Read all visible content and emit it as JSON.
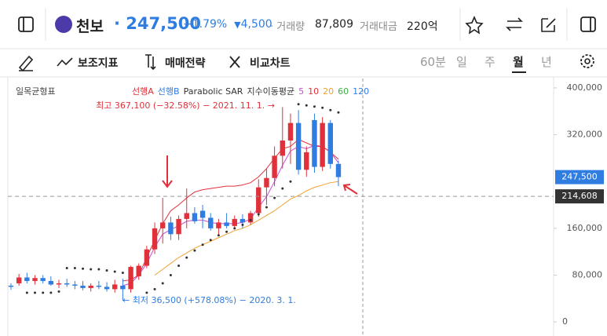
{
  "header": {
    "name": "천보",
    "price": "247,500",
    "change_pct": "−1.79%",
    "change_sign": "▼",
    "change": "4,500",
    "volume_label": "· 거래량",
    "volume": "87,809",
    "amount_label": "거래대금",
    "amount": "220억"
  },
  "toolbar": {
    "indicators": "보조지표",
    "strategy": "매매전략",
    "compare": "비교차트",
    "timeframes": [
      "60분",
      "일",
      "주",
      "월",
      "년"
    ]
  },
  "chart_data": {
    "type": "candlestick",
    "title": "일목균형표",
    "legend": [
      {
        "name": "선행A",
        "color": "#e0303a"
      },
      {
        "name": "선행B",
        "color": "#2f7de1"
      },
      {
        "name": "Parabolic SAR",
        "color": "#333333"
      },
      {
        "name": "지수이동평균",
        "color": "#333333"
      },
      {
        "name": "60",
        "color": "#3cb043"
      },
      {
        "name": "120",
        "color": "#2f7de1"
      }
    ],
    "categories": [
      null,
      null,
      null,
      null,
      null,
      null,
      null,
      null,
      null,
      null,
      null,
      null,
      null,
      null,
      null,
      null,
      null,
      null,
      null,
      null,
      null,
      null,
      null,
      null,
      null,
      null,
      null,
      null,
      null,
      null,
      null,
      null,
      null,
      null,
      null,
      null,
      null,
      null,
      null,
      null,
      null,
      null
    ],
    "open": [
      62000,
      66000,
      76000,
      70000,
      75000,
      70000,
      64000,
      66000,
      64000,
      62000,
      58000,
      62000,
      60000,
      56000,
      62000,
      56000,
      78000,
      96000,
      124000,
      160000,
      170000,
      150000,
      176000,
      186000,
      190000,
      178000,
      160000,
      170000,
      164000,
      176000,
      170000,
      186000,
      230000,
      246000,
      284000,
      310000,
      340000,
      260000,
      345000,
      265000,
      340000,
      270000
    ],
    "high": [
      66000,
      82000,
      84000,
      80000,
      80000,
      78000,
      72000,
      74000,
      70000,
      70000,
      66000,
      70000,
      68000,
      72000,
      74000,
      96000,
      100000,
      130000,
      170000,
      212000,
      180000,
      182000,
      228000,
      196000,
      200000,
      186000,
      176000,
      186000,
      182000,
      184000,
      190000,
      244000,
      262000,
      300000,
      367100,
      356000,
      362000,
      300000,
      356000,
      350000,
      345000,
      276000
    ],
    "low": [
      55000,
      62000,
      66000,
      64000,
      66000,
      62000,
      58000,
      60000,
      56000,
      54000,
      52000,
      56000,
      52000,
      50000,
      36500,
      50000,
      72000,
      92000,
      116000,
      134000,
      140000,
      140000,
      160000,
      168000,
      160000,
      156000,
      150000,
      160000,
      158000,
      160000,
      166000,
      180000,
      200000,
      232000,
      262000,
      270000,
      252000,
      248000,
      255000,
      258000,
      262000,
      232000
    ],
    "close": [
      60000,
      76000,
      70000,
      75000,
      70000,
      64000,
      66000,
      64000,
      62000,
      58000,
      62000,
      60000,
      56000,
      64000,
      56000,
      94000,
      96000,
      124000,
      160000,
      170000,
      150000,
      176000,
      186000,
      172000,
      178000,
      160000,
      170000,
      164000,
      176000,
      170000,
      186000,
      230000,
      246000,
      284000,
      310000,
      340000,
      260000,
      290000,
      265000,
      340000,
      270000,
      247500
    ],
    "up_color": "#e0303a",
    "down_color": "#2f7de1",
    "series": [
      {
        "name": "5",
        "color": "#c94bd6",
        "values": [
          null,
          null,
          null,
          null,
          null,
          null,
          null,
          null,
          null,
          null,
          null,
          null,
          null,
          null,
          62000,
          66000,
          80000,
          100000,
          128000,
          150000,
          158000,
          164000,
          172000,
          174000,
          174000,
          170000,
          168000,
          168000,
          168000,
          170000,
          176000,
          196000,
          214000,
          240000,
          268000,
          292000,
          300000,
          296000,
          302000,
          300000,
          290000,
          272000
        ]
      },
      {
        "name": "10",
        "color": "#e0303a",
        "values": [
          null,
          null,
          null,
          null,
          null,
          null,
          null,
          null,
          null,
          null,
          null,
          null,
          null,
          null,
          70000,
          72000,
          80000,
          110000,
          140000,
          168000,
          190000,
          200000,
          212000,
          222000,
          226000,
          228000,
          230000,
          232000,
          232000,
          234000,
          238000,
          248000,
          262000,
          280000,
          296000,
          300000,
          312000,
          306000,
          300000,
          300000,
          290000,
          278000
        ]
      },
      {
        "name": "20",
        "color": "#f0a030",
        "values": [
          null,
          null,
          null,
          null,
          null,
          null,
          null,
          null,
          null,
          null,
          null,
          null,
          null,
          null,
          null,
          null,
          null,
          null,
          80000,
          90000,
          100000,
          110000,
          118000,
          126000,
          132000,
          138000,
          144000,
          150000,
          156000,
          160000,
          166000,
          174000,
          182000,
          190000,
          200000,
          210000,
          216000,
          224000,
          230000,
          234000,
          238000,
          240000
        ]
      }
    ],
    "sar": {
      "color": "#333333",
      "values": [
        null,
        null,
        50000,
        50000,
        50000,
        50000,
        52000,
        92000,
        92000,
        91000,
        90000,
        90000,
        88000,
        86000,
        84000,
        null,
        null,
        50000,
        56000,
        66000,
        80000,
        96000,
        110000,
        122000,
        132000,
        140000,
        148000,
        154000,
        160000,
        166000,
        174000,
        184000,
        196000,
        212000,
        228000,
        240000,
        372000,
        370000,
        368000,
        366000,
        362000,
        358000
      ]
    },
    "ylim": [
      -24000,
      416000
    ],
    "yticks": [
      {
        "value": 400000,
        "label": "400,000"
      },
      {
        "value": 320000,
        "label": "320,000"
      },
      {
        "value": 160000,
        "label": "160,000"
      },
      {
        "value": 80000,
        "label": "80,000"
      },
      0
    ],
    "price_tags": [
      {
        "value": 247500,
        "label": "247,500",
        "color": "#2f7de1"
      },
      {
        "value": 214608,
        "label": "214,608",
        "color": "#333333"
      }
    ],
    "annotations": {
      "high": "최고 367,100 (−32.58%) − 2021. 11. 1. →",
      "low": "← 최저 36,500 (+578.08%) − 2020. 3. 1."
    }
  }
}
